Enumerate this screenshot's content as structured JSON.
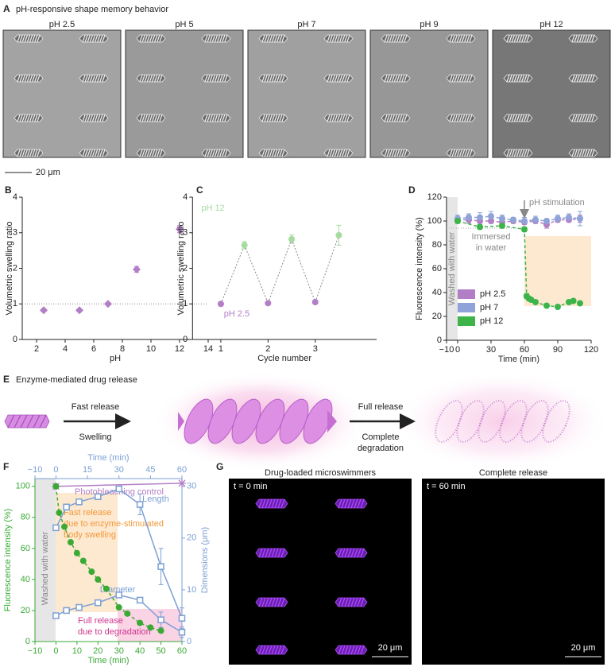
{
  "panel_a": {
    "letter": "A",
    "title": "pH-responsive shape memory behavior",
    "labels": [
      "pH 2.5",
      "pH 5",
      "pH 7",
      "pH 9",
      "pH 12"
    ],
    "scale_bar": "20 μm"
  },
  "panel_e": {
    "letter": "E",
    "title": "Enzyme-mediated drug release",
    "steps": [
      {
        "above": "Fast release",
        "below": [
          "Swelling"
        ]
      },
      {
        "above": "Full release",
        "below": [
          "Complete",
          "degradation"
        ]
      }
    ]
  },
  "panel_g": {
    "letter": "G",
    "images": [
      {
        "title": "Drug-loaded microswimmers",
        "time": "t = 0 min",
        "scale_bar": "20 μm"
      },
      {
        "title": "Complete release",
        "time": "t = 60 min",
        "scale_bar": "20 μm"
      }
    ]
  },
  "chart_data": [
    {
      "panel": "B",
      "type": "scatter",
      "xlabel": "pH",
      "ylabel": "Volumetric swelling ratio",
      "x": [
        2.5,
        5,
        7,
        9,
        12
      ],
      "values": [
        0.82,
        0.82,
        1.0,
        1.97,
        3.1
      ],
      "errors": [
        0.04,
        0.04,
        0.04,
        0.08,
        0.1
      ],
      "color": "#b27fc6",
      "marker": "diamond",
      "hline": 1,
      "xlim": [
        1,
        14
      ],
      "xticks": [
        2,
        4,
        6,
        8,
        10,
        12,
        14
      ],
      "ylim": [
        0,
        4
      ],
      "yticks": [
        0,
        1,
        2,
        3,
        4
      ]
    },
    {
      "panel": "C",
      "type": "scatter",
      "xlabel": "Cycle number",
      "ylabel": "Volumetric swelling ratio",
      "legend": "labels",
      "connect": true,
      "series": [
        {
          "name": "pH 2.5",
          "color": "#b27fc6",
          "marker": "circle",
          "x": [
            1,
            2,
            3
          ],
          "values": [
            1.0,
            1.02,
            1.05
          ],
          "errors": [
            0.03,
            0.03,
            0.03
          ]
        },
        {
          "name": "pH 12",
          "color": "#a6dca0",
          "marker": "circle",
          "x": [
            1.5,
            2.5,
            3.5
          ],
          "values": [
            2.65,
            2.82,
            2.93
          ],
          "errors": [
            0.1,
            0.12,
            0.28
          ]
        }
      ],
      "xlim": [
        0.4,
        4.3
      ],
      "xticks": [
        1,
        2,
        3
      ],
      "ylim": [
        0,
        4
      ],
      "yticks": [
        0,
        1,
        2,
        3,
        4
      ]
    },
    {
      "panel": "D",
      "type": "line",
      "xlabel": "Time (min)",
      "ylabel": "Fluorescence intensity (%)",
      "legend": "lower left",
      "annotations": {
        "stimulation": "pH stimulation",
        "immersed": [
          "Immersed",
          "in water"
        ],
        "washed": "Washed with water"
      },
      "series": [
        {
          "name": "pH 2.5",
          "color": "#b27fc6",
          "marker": "circle",
          "line_style": "dashed",
          "x": [
            0,
            10,
            20,
            30,
            40,
            50,
            60,
            70,
            80,
            90,
            100,
            110
          ],
          "values": [
            101,
            101,
            100,
            100,
            99,
            100,
            99,
            100,
            97,
            101,
            101,
            102
          ],
          "errors": [
            2,
            3,
            2,
            2,
            2,
            2,
            2,
            2,
            3,
            2,
            2,
            3
          ]
        },
        {
          "name": "pH 7",
          "color": "#8fa3d8",
          "marker": "circle",
          "line_style": "dashed",
          "x": [
            0,
            10,
            20,
            30,
            40,
            50,
            60,
            70,
            80,
            90,
            100,
            110
          ],
          "values": [
            102,
            103,
            103,
            104,
            102,
            101,
            100,
            101,
            100,
            102,
            103,
            102
          ],
          "errors": [
            3,
            3,
            4,
            4,
            3,
            2,
            3,
            3,
            2,
            3,
            3,
            6
          ]
        },
        {
          "name": "pH 12",
          "color": "#3cb44a",
          "marker": "circle",
          "line_style": "dashed",
          "x": [
            0,
            20,
            40,
            60,
            62,
            64,
            66,
            70,
            80,
            90,
            100,
            104,
            110
          ],
          "values": [
            100,
            95,
            96,
            93,
            37,
            35,
            34,
            32,
            29,
            28,
            32,
            33,
            31
          ],
          "errors": [
            2,
            2,
            2,
            2,
            2,
            1,
            1,
            1,
            1,
            1,
            1,
            1,
            1
          ]
        }
      ],
      "xlim": [
        -10,
        120
      ],
      "xticks": [
        {
          "value": -10,
          "label": "−10"
        },
        0,
        30,
        60,
        90,
        120
      ],
      "ylim": [
        0,
        120
      ],
      "yticks": [
        0,
        20,
        40,
        60,
        80,
        100,
        120
      ]
    },
    {
      "panel": "F",
      "type": "line",
      "xlabel": "Time (min)",
      "x2label": "Time (min)",
      "ylabel": "Fluorescence intensity (%)",
      "y2label": "Dimensions (μm)",
      "xcolor": "#3aaa35",
      "ycolor": "#3aaa35",
      "x2color": "#7b9fd4",
      "y2color": "#7b9fd4",
      "legend": "labels",
      "annotations": {
        "fast": [
          "Fast release",
          "due to enzyme-stimulated",
          "body swelling"
        ],
        "washed": "Washed with water",
        "full": [
          "Full release",
          "due to degradation"
        ]
      },
      "series": [
        {
          "name": "Photobleaching control",
          "color": "#b27fc6",
          "marker": "star",
          "line_style": "solid",
          "x": [
            0,
            60
          ],
          "values": [
            100,
            102
          ]
        },
        {
          "color": "#3aaa35",
          "marker": "circle",
          "line_style": "dashed",
          "x": [
            0,
            1.5,
            4,
            7,
            10,
            13,
            17,
            20,
            24,
            30,
            34,
            40,
            45,
            50
          ],
          "values": [
            100,
            83,
            74,
            64,
            57,
            52,
            45,
            40,
            34,
            22,
            18,
            12,
            9,
            7
          ]
        },
        {
          "name": "Length",
          "color": "#7b9fd4",
          "marker": "square",
          "line_style": "solid",
          "axis": "y2",
          "xaxis": "x2",
          "x": [
            0,
            5,
            11,
            20,
            30,
            40,
            50,
            60
          ],
          "values": [
            22,
            26,
            27,
            28,
            29.5,
            26.5,
            14.5,
            4.5
          ],
          "errors": [
            0.5,
            0.5,
            0.5,
            0.5,
            0.5,
            2,
            3.5,
            2
          ]
        },
        {
          "name": "Diameter",
          "color": "#7b9fd4",
          "marker": "square",
          "line_style": "solid",
          "axis": "y2",
          "xaxis": "x2",
          "x": [
            0,
            5,
            11,
            20,
            30,
            40,
            50,
            60
          ],
          "values": [
            5,
            6,
            6.6,
            7.5,
            9,
            8,
            4.2,
            1.8
          ],
          "errors": [
            0.5,
            0.5,
            0.5,
            0.5,
            0.5,
            0.5,
            1.5,
            1
          ]
        }
      ],
      "xlim": [
        -10,
        60
      ],
      "xticks": [
        {
          "value": -10,
          "label": "−10"
        },
        0,
        10,
        20,
        30,
        40,
        50,
        60
      ],
      "x2lim": [
        -10,
        60
      ],
      "x2ticks": [
        {
          "value": -10,
          "label": "−10"
        },
        0,
        15,
        30,
        45,
        60
      ],
      "ylim": [
        0,
        105
      ],
      "yticks": [
        0,
        20,
        40,
        60,
        80,
        100
      ],
      "y2lim": [
        0,
        31.5
      ],
      "y2ticks": [
        0,
        10,
        20,
        30
      ]
    }
  ]
}
